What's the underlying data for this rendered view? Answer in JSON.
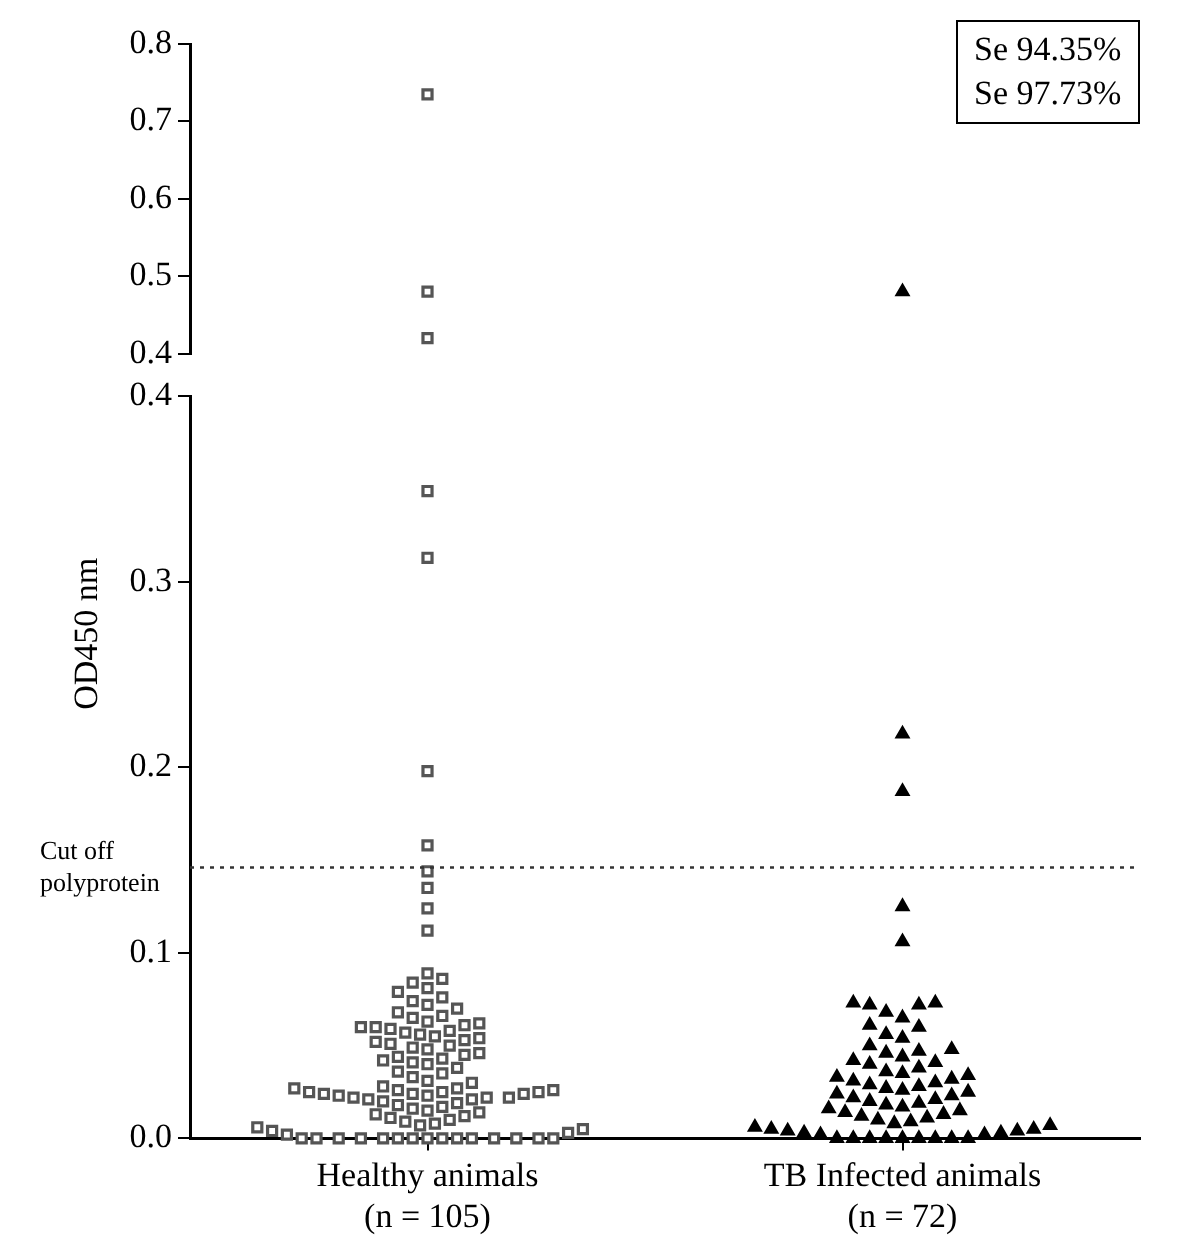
{
  "chart_data": [
    {
      "type": "scatter",
      "categories": [
        "Healthy animals (n = 105)",
        "TB Infected animals (n = 72)"
      ],
      "ylim": [
        0.4,
        0.8
      ],
      "yticks": [
        0.4,
        0.5,
        0.6,
        0.7,
        0.8
      ],
      "tick_labels": "y",
      "grid": false,
      "legend": false,
      "annotations": [
        "Se 94.35%",
        "Se 97.73%"
      ],
      "series": [
        {
          "color": "#555555",
          "marker": "square",
          "x": [
            "Healthy animals (n = 105)",
            "Healthy animals (n = 105)",
            "Healthy animals (n = 105)"
          ],
          "values": [
            0.735,
            0.48,
            0.42
          ]
        },
        {
          "color": "#000000",
          "marker": "triangle",
          "x": [
            "TB Infected animals (n = 72)"
          ],
          "values": [
            0.48
          ]
        }
      ]
    },
    {
      "type": "scatter",
      "categories": [
        "Healthy animals (n = 105)",
        "TB Infected animals (n = 72)"
      ],
      "ylabel": "OD450 nm",
      "ylim": [
        0,
        0.4
      ],
      "yticks": [
        {
          "value": 0,
          "label": "0.0"
        },
        0.1,
        0.2,
        0.3,
        0.4
      ],
      "grid": false,
      "legend": false,
      "ref_lines": [
        {
          "axis": "y",
          "value": 0.146,
          "label": "Cut off polyprotein",
          "line_style": "dotted",
          "color": "#333333"
        }
      ],
      "series": [
        {
          "color": "#555555",
          "marker": "square",
          "values": [
            0.349,
            0.313,
            0.198,
            0.158,
            0.144,
            0.135,
            0.124,
            0.112,
            0.089,
            0.086,
            0.084,
            0.081,
            0.079,
            0.076,
            0.074,
            0.072,
            0.07,
            0.068,
            0.066,
            0.065,
            0.063,
            0.062,
            0.061,
            0.06,
            0.06,
            0.059,
            0.058,
            0.057,
            0.056,
            0.055,
            0.054,
            0.053,
            0.052,
            0.051,
            0.05,
            0.049,
            0.048,
            0.046,
            0.045,
            0.044,
            0.043,
            0.042,
            0.041,
            0.04,
            0.038,
            0.036,
            0.035,
            0.033,
            0.031,
            0.03,
            0.028,
            0.027,
            0.027,
            0.026,
            0.026,
            0.025,
            0.025,
            0.025,
            0.024,
            0.024,
            0.024,
            0.023,
            0.023,
            0.022,
            0.022,
            0.022,
            0.021,
            0.021,
            0.02,
            0.019,
            0.018,
            0.017,
            0.016,
            0.015,
            0.014,
            0.013,
            0.012,
            0.011,
            0.01,
            0.009,
            0.008,
            0.007,
            0.006,
            0.005,
            0.004,
            0.003,
            0.002,
            0,
            0,
            0,
            0,
            0,
            0,
            0,
            0,
            0,
            0,
            0,
            0,
            0,
            0,
            0
          ],
          "x": [
            "Healthy animals (n = 105)",
            "Healthy animals (n = 105)",
            "Healthy animals (n = 105)",
            "Healthy animals (n = 105)",
            "Healthy animals (n = 105)",
            "Healthy animals (n = 105)",
            "Healthy animals (n = 105)",
            "Healthy animals (n = 105)",
            "Healthy animals (n = 105)",
            "Healthy animals (n = 105)",
            "Healthy animals (n = 105)",
            "Healthy animals (n = 105)",
            "Healthy animals (n = 105)",
            "Healthy animals (n = 105)",
            "Healthy animals (n = 105)",
            "Healthy animals (n = 105)",
            "Healthy animals (n = 105)",
            "Healthy animals (n = 105)",
            "Healthy animals (n = 105)",
            "Healthy animals (n = 105)",
            "Healthy animals (n = 105)",
            "Healthy animals (n = 105)",
            "Healthy animals (n = 105)",
            "Healthy animals (n = 105)",
            "Healthy animals (n = 105)",
            "Healthy animals (n = 105)",
            "Healthy animals (n = 105)",
            "Healthy animals (n = 105)",
            "Healthy animals (n = 105)",
            "Healthy animals (n = 105)",
            "Healthy animals (n = 105)",
            "Healthy animals (n = 105)",
            "Healthy animals (n = 105)",
            "Healthy animals (n = 105)",
            "Healthy animals (n = 105)",
            "Healthy animals (n = 105)",
            "Healthy animals (n = 105)",
            "Healthy animals (n = 105)",
            "Healthy animals (n = 105)",
            "Healthy animals (n = 105)",
            "Healthy animals (n = 105)",
            "Healthy animals (n = 105)",
            "Healthy animals (n = 105)",
            "Healthy animals (n = 105)",
            "Healthy animals (n = 105)",
            "Healthy animals (n = 105)",
            "Healthy animals (n = 105)",
            "Healthy animals (n = 105)",
            "Healthy animals (n = 105)",
            "Healthy animals (n = 105)",
            "Healthy animals (n = 105)",
            "Healthy animals (n = 105)",
            "Healthy animals (n = 105)",
            "Healthy animals (n = 105)",
            "Healthy animals (n = 105)",
            "Healthy animals (n = 105)",
            "Healthy animals (n = 105)",
            "Healthy animals (n = 105)",
            "Healthy animals (n = 105)",
            "Healthy animals (n = 105)",
            "Healthy animals (n = 105)",
            "Healthy animals (n = 105)",
            "Healthy animals (n = 105)",
            "Healthy animals (n = 105)",
            "Healthy animals (n = 105)",
            "Healthy animals (n = 105)",
            "Healthy animals (n = 105)",
            "Healthy animals (n = 105)",
            "Healthy animals (n = 105)",
            "Healthy animals (n = 105)",
            "Healthy animals (n = 105)",
            "Healthy animals (n = 105)",
            "Healthy animals (n = 105)",
            "Healthy animals (n = 105)",
            "Healthy animals (n = 105)",
            "Healthy animals (n = 105)",
            "Healthy animals (n = 105)",
            "Healthy animals (n = 105)",
            "Healthy animals (n = 105)",
            "Healthy animals (n = 105)",
            "Healthy animals (n = 105)",
            "Healthy animals (n = 105)",
            "Healthy animals (n = 105)",
            "Healthy animals (n = 105)",
            "Healthy animals (n = 105)",
            "Healthy animals (n = 105)",
            "Healthy animals (n = 105)",
            "Healthy animals (n = 105)",
            "Healthy animals (n = 105)",
            "Healthy animals (n = 105)",
            "Healthy animals (n = 105)",
            "Healthy animals (n = 105)",
            "Healthy animals (n = 105)",
            "Healthy animals (n = 105)",
            "Healthy animals (n = 105)",
            "Healthy animals (n = 105)",
            "Healthy animals (n = 105)",
            "Healthy animals (n = 105)",
            "Healthy animals (n = 105)",
            "Healthy animals (n = 105)",
            "Healthy animals (n = 105)",
            "Healthy animals (n = 105)"
          ]
        },
        {
          "color": "#000000",
          "marker": "triangle",
          "values": [
            0.218,
            0.187,
            0.125,
            0.106,
            0.073,
            0.073,
            0.072,
            0.072,
            0.068,
            0.065,
            0.061,
            0.06,
            0.056,
            0.054,
            0.05,
            0.048,
            0.047,
            0.046,
            0.044,
            0.042,
            0.041,
            0.04,
            0.038,
            0.036,
            0.035,
            0.034,
            0.033,
            0.032,
            0.031,
            0.03,
            0.029,
            0.028,
            0.027,
            0.026,
            0.025,
            0.024,
            0.023,
            0.022,
            0.021,
            0.02,
            0.019,
            0.018,
            0.017,
            0.016,
            0.015,
            0.014,
            0.013,
            0.012,
            0.011,
            0.01,
            0.009,
            0.008,
            0.007,
            0.006,
            0.005,
            0.005,
            0.004,
            0.004,
            0.003,
            0.003,
            0.002,
            0.002,
            0,
            0,
            0,
            0,
            0,
            0,
            0,
            0,
            0
          ],
          "x": [
            "TB Infected animals (n = 72)",
            "TB Infected animals (n = 72)",
            "TB Infected animals (n = 72)",
            "TB Infected animals (n = 72)",
            "TB Infected animals (n = 72)",
            "TB Infected animals (n = 72)",
            "TB Infected animals (n = 72)",
            "TB Infected animals (n = 72)",
            "TB Infected animals (n = 72)",
            "TB Infected animals (n = 72)",
            "TB Infected animals (n = 72)",
            "TB Infected animals (n = 72)",
            "TB Infected animals (n = 72)",
            "TB Infected animals (n = 72)",
            "TB Infected animals (n = 72)",
            "TB Infected animals (n = 72)",
            "TB Infected animals (n = 72)",
            "TB Infected animals (n = 72)",
            "TB Infected animals (n = 72)",
            "TB Infected animals (n = 72)",
            "TB Infected animals (n = 72)",
            "TB Infected animals (n = 72)",
            "TB Infected animals (n = 72)",
            "TB Infected animals (n = 72)",
            "TB Infected animals (n = 72)",
            "TB Infected animals (n = 72)",
            "TB Infected animals (n = 72)",
            "TB Infected animals (n = 72)",
            "TB Infected animals (n = 72)",
            "TB Infected animals (n = 72)",
            "TB Infected animals (n = 72)",
            "TB Infected animals (n = 72)",
            "TB Infected animals (n = 72)",
            "TB Infected animals (n = 72)",
            "TB Infected animals (n = 72)",
            "TB Infected animals (n = 72)",
            "TB Infected animals (n = 72)",
            "TB Infected animals (n = 72)",
            "TB Infected animals (n = 72)",
            "TB Infected animals (n = 72)",
            "TB Infected animals (n = 72)",
            "TB Infected animals (n = 72)",
            "TB Infected animals (n = 72)",
            "TB Infected animals (n = 72)",
            "TB Infected animals (n = 72)",
            "TB Infected animals (n = 72)",
            "TB Infected animals (n = 72)",
            "TB Infected animals (n = 72)",
            "TB Infected animals (n = 72)",
            "TB Infected animals (n = 72)",
            "TB Infected animals (n = 72)",
            "TB Infected animals (n = 72)",
            "TB Infected animals (n = 72)",
            "TB Infected animals (n = 72)",
            "TB Infected animals (n = 72)",
            "TB Infected animals (n = 72)",
            "TB Infected animals (n = 72)",
            "TB Infected animals (n = 72)",
            "TB Infected animals (n = 72)",
            "TB Infected animals (n = 72)",
            "TB Infected animals (n = 72)",
            "TB Infected animals (n = 72)",
            "TB Infected animals (n = 72)",
            "TB Infected animals (n = 72)",
            "TB Infected animals (n = 72)",
            "TB Infected animals (n = 72)",
            "TB Infected animals (n = 72)",
            "TB Infected animals (n = 72)",
            "TB Infected animals (n = 72)",
            "TB Infected animals (n = 72)",
            "TB Infected animals (n = 72)"
          ]
        }
      ]
    }
  ]
}
